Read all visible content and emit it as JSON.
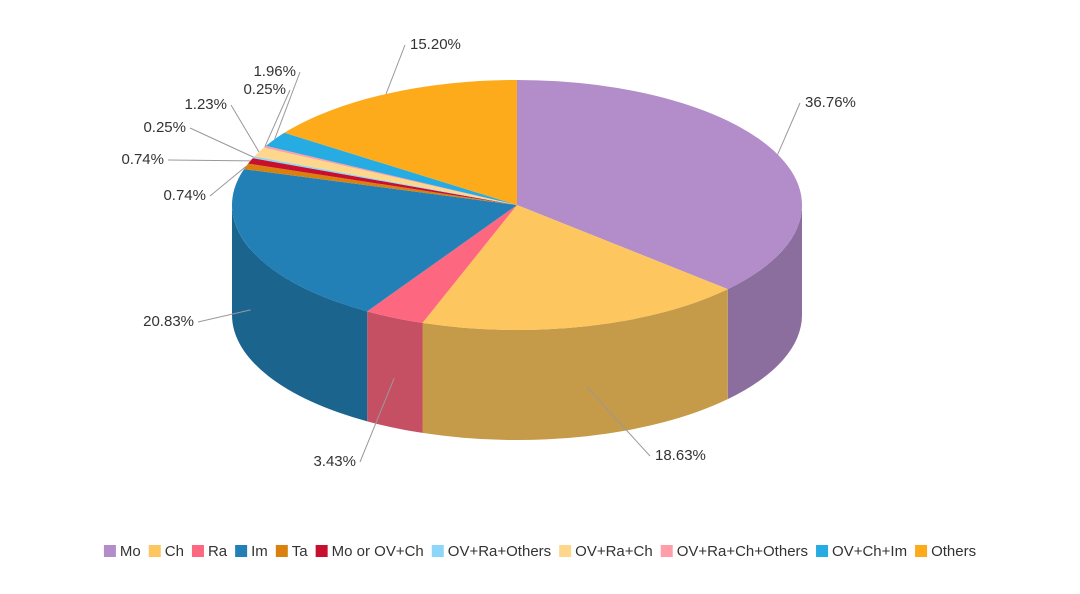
{
  "chart_data": {
    "type": "pie3d",
    "categories": [
      "Mo",
      "Ch",
      "Ra",
      "Im",
      "Ta",
      "Mo or OV+Ch",
      "OV+Ra+Others",
      "OV+Ra+Ch",
      "OV+Ra+Ch+Others",
      "OV+Ch+Im",
      "Others"
    ],
    "values": [
      36.76,
      18.63,
      3.43,
      20.83,
      0.74,
      0.74,
      0.25,
      1.23,
      0.25,
      1.96,
      15.2
    ],
    "value_labels": [
      "36.76%",
      "18.63%",
      "3.43%",
      "20.83%",
      "0.74%",
      "0.74%",
      "0.25%",
      "1.23%",
      "0.25%",
      "1.96%",
      "15.20%"
    ],
    "colors": [
      "#b28dc9",
      "#fdc65e",
      "#fd6780",
      "#2380b6",
      "#d9800f",
      "#c8102e",
      "#8dd6f7",
      "#fdd88c",
      "#ff9ea8",
      "#27abe3",
      "#fdab1b"
    ],
    "legend": "bottom"
  }
}
